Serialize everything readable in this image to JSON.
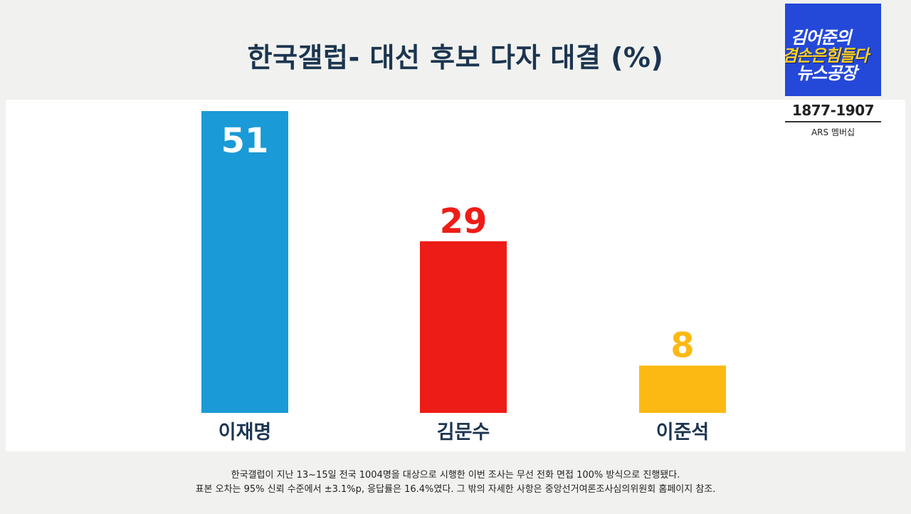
{
  "chart_data": {
    "type": "bar",
    "title": "한국갤럽- 대선 후보 다자 대결 (%)",
    "categories": [
      "이재명",
      "김문수",
      "이준석"
    ],
    "values": [
      51,
      29,
      8
    ],
    "colors": [
      "#1a9ad6",
      "#ee1c16",
      "#fdb913"
    ],
    "label_colors": [
      "#ffffff",
      "#ee1c16",
      "#fdb913"
    ],
    "label_inside": [
      true,
      false,
      false
    ],
    "ylim": [
      0,
      51
    ],
    "grid": false,
    "legend": "none"
  },
  "footnotes": [
    "한국갤럽이 지난 13~15일 전국 1004명을 대상으로 시행한 이번 조사는 무선 전화 면접 100% 방식으로 진행됐다.",
    "표본 오차는 95% 신뢰 수준에서 ±3.1%p, 응답률은 16.4%였다. 그 밖의 자세한 사항은 중앙선거여론조사심의위원회 홈페이지 참조."
  ],
  "logo": {
    "line1": "김어준의",
    "line2": "겸손은힘들다",
    "line3": "뉴스공장",
    "bg_color": "#2448d8"
  },
  "contact": {
    "phone": "1877-1907",
    "membership": "ARS 멤버십"
  }
}
